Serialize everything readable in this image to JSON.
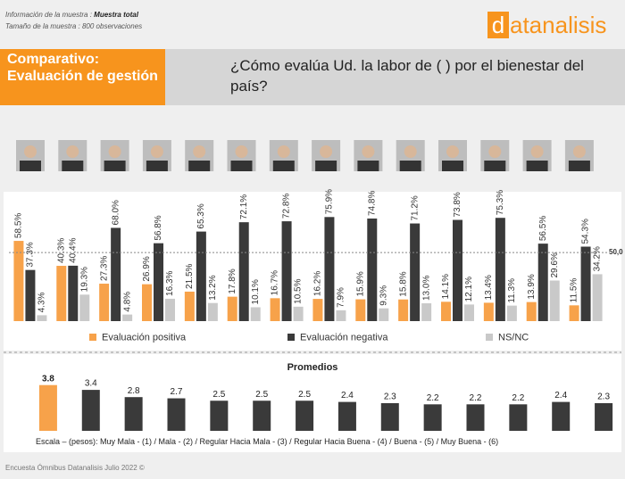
{
  "header": {
    "info_label": "Información de la muestra :",
    "info_value": "Muestra total",
    "size_label": "Tamaño de la muestra :",
    "size_value": "800 observaciones",
    "logo_letter": "d",
    "logo_rest": "atanalisis",
    "section": "Comparativo: Evaluación de gestión",
    "question": "¿Cómo evalúa Ud. la labor de (   ) por el bienestar del país?"
  },
  "chart_data": [
    {
      "type": "bar",
      "categories": [
        null,
        null,
        null,
        null,
        null,
        null,
        null,
        null,
        null,
        null,
        null,
        null,
        null,
        null
      ],
      "series": [
        {
          "name": "Evaluación positiva",
          "color": "#f7a24a",
          "values": [
            58.5,
            40.3,
            27.3,
            26.9,
            21.5,
            17.8,
            16.7,
            16.2,
            15.9,
            15.8,
            14.1,
            13.4,
            13.9,
            11.5
          ],
          "value_labels": [
            "58.5%",
            "40.3%",
            "27.3%",
            "26.9%",
            "21.5%",
            "17.8%",
            "16.7%",
            "16.2%",
            "15.9%",
            "15.8%",
            "14.1%",
            "13.4%",
            "13.9%",
            "11.5%"
          ]
        },
        {
          "name": "Evaluación negativa",
          "color": "#3a3a3a",
          "values": [
            37.3,
            40.4,
            68.0,
            56.8,
            65.3,
            72.1,
            72.8,
            75.9,
            74.8,
            71.2,
            73.8,
            75.3,
            56.5,
            54.3
          ],
          "value_labels": [
            "37.3%",
            "40.4%",
            "68.0%",
            "56.8%",
            "65.3%",
            "72.1%",
            "72.8%",
            "75.9%",
            "74.8%",
            "71.2%",
            "73.8%",
            "75.3%",
            "56.5%",
            "54.3%"
          ]
        },
        {
          "name": "NS/NC",
          "color": "#c9c9c9",
          "values": [
            4.3,
            19.3,
            4.8,
            16.3,
            13.2,
            10.1,
            10.5,
            7.9,
            9.3,
            13.0,
            12.1,
            11.3,
            29.6,
            34.2
          ],
          "value_labels": [
            "4.3%",
            "19.3%",
            "4.8%",
            "16.3%",
            "13.2%",
            "10.1%",
            "10.5%",
            "7.9%",
            "9.3%",
            "13.0%",
            "12.1%",
            "11.3%",
            "29.6%",
            "34.2%"
          ]
        }
      ],
      "ylim": [
        0,
        80
      ],
      "reference_line": {
        "value": 50,
        "label": "50,0"
      }
    },
    {
      "type": "bar",
      "title": "Promedios",
      "categories": [
        null,
        null,
        null,
        null,
        null,
        null,
        null,
        null,
        null,
        null,
        null,
        null,
        null,
        null
      ],
      "values": [
        3.8,
        3.4,
        2.8,
        2.7,
        2.5,
        2.5,
        2.5,
        2.4,
        2.3,
        2.2,
        2.2,
        2.2,
        2.4,
        2.3
      ],
      "colors": [
        "#f7a24a",
        "#3a3a3a",
        "#3a3a3a",
        "#3a3a3a",
        "#3a3a3a",
        "#3a3a3a",
        "#3a3a3a",
        "#3a3a3a",
        "#3a3a3a",
        "#3a3a3a",
        "#3a3a3a",
        "#3a3a3a",
        "#3a3a3a",
        "#3a3a3a"
      ],
      "ylim": [
        0,
        4
      ]
    }
  ],
  "scale_note": "Escala – (pesos): Muy Mala - (1) / Mala - (2) / Regular Hacia Mala - (3) / Regular Hacia Buena - (4) / Buena - (5) / Muy Buena - (6)",
  "footer": "Encuesta Ómnibus Datanalisis Julio 2022 ©"
}
